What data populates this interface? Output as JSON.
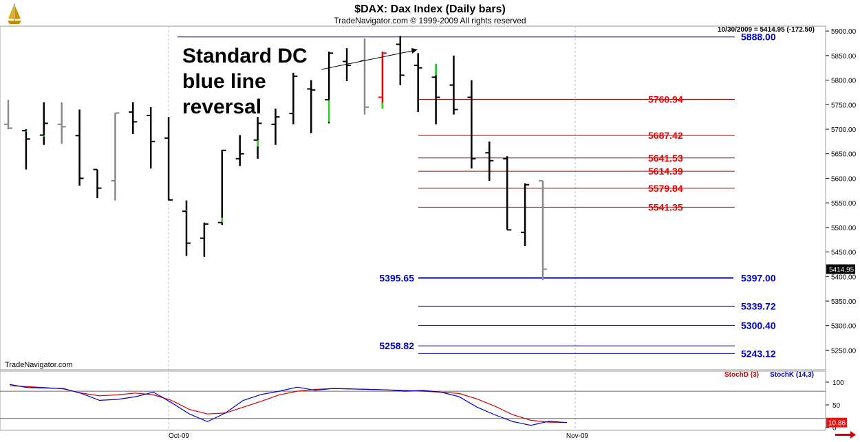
{
  "header": {
    "title": "$DAX:  Dax Index  (Daily bars)",
    "copyright": "TradeNavigator.com © 1999-2009 All rights reserved",
    "status_readout": "10/30/2009 = 5414.95 (-172.50)",
    "watermark": "TradeNavigator.com",
    "logo_icon": "sailing-ship-icon",
    "nav_icon": "right-arrow-icon"
  },
  "colors": {
    "up_bar": "#000000",
    "down_bar": "#000000",
    "gray_bar": "#888888",
    "green_bar": "#22dd22",
    "red_bar": "#ee0000",
    "blue_level": "#0000cc",
    "red_level": "#aa0000",
    "stoch_d": "#cc0000",
    "stoch_k": "#0000cc",
    "grid": "#bbbbbb",
    "price_box": "#000000",
    "stoch_box": "#ee1111",
    "arrow": "#cc0000"
  },
  "chart_data": [
    {
      "type": "ohlc",
      "title": "$DAX:  Dax Index  (Daily bars)",
      "ylim": [
        5210,
        5910
      ],
      "y_ticks": [
        5250,
        5300,
        5350,
        5400,
        5450,
        5500,
        5550,
        5600,
        5650,
        5700,
        5750,
        5800,
        5850,
        5900
      ],
      "y_tick_labels": [
        "5250.00",
        "5300.00",
        "5350.00",
        "5400.00",
        "5450.00",
        "5500.00",
        "5550.00",
        "5600.00",
        "5650.00",
        "5700.00",
        "5750.00",
        "5800.00",
        "5850.00",
        "5900.00"
      ],
      "x_labels": [
        "Oct-09",
        "Nov-09"
      ],
      "last_price_label": "5414.95",
      "annotation": [
        "Standard DC",
        "blue line",
        "reversal"
      ],
      "bars": [
        {
          "o": 5710,
          "h": 5760,
          "l": 5700,
          "c": 5702,
          "color": "gray"
        },
        {
          "o": 5697,
          "h": 5700,
          "l": 5618,
          "c": 5680,
          "color": "black",
          "green_to": 5695
        },
        {
          "o": 5688,
          "h": 5755,
          "l": 5668,
          "c": 5712,
          "color": "black",
          "green_to": 5685
        },
        {
          "o": 5710,
          "h": 5755,
          "l": 5670,
          "c": 5705,
          "color": "gray"
        },
        {
          "o": 5687,
          "h": 5740,
          "l": 5585,
          "c": 5600,
          "color": "black"
        },
        {
          "o": 5618,
          "h": 5618,
          "l": 5560,
          "c": 5580,
          "color": "black"
        },
        {
          "o": 5595,
          "h": 5733,
          "l": 5555,
          "c": 5733,
          "color": "gray"
        },
        {
          "o": 5735,
          "h": 5755,
          "l": 5690,
          "c": 5715,
          "color": "black"
        },
        {
          "o": 5728,
          "h": 5745,
          "l": 5620,
          "c": 5675,
          "color": "black"
        },
        {
          "o": 5682,
          "h": 5725,
          "l": 5555,
          "c": 5556,
          "color": "black"
        },
        {
          "o": 5533,
          "h": 5555,
          "l": 5442,
          "c": 5468,
          "color": "black",
          "green_to": 5535
        },
        {
          "o": 5478,
          "h": 5510,
          "l": 5440,
          "c": 5507,
          "color": "black"
        },
        {
          "o": 5510,
          "h": 5658,
          "l": 5505,
          "c": 5657,
          "color": "black",
          "green_to": 5520
        },
        {
          "o": 5640,
          "h": 5688,
          "l": 5625,
          "c": 5650,
          "color": "black"
        },
        {
          "o": 5678,
          "h": 5725,
          "l": 5640,
          "c": 5712,
          "color": "black",
          "green_to": 5665
        },
        {
          "o": 5710,
          "h": 5742,
          "l": 5668,
          "c": 5725,
          "color": "black"
        },
        {
          "o": 5732,
          "h": 5815,
          "l": 5710,
          "c": 5808,
          "color": "black",
          "green_to": 5733
        },
        {
          "o": 5782,
          "h": 5800,
          "l": 5692,
          "c": 5780,
          "color": "black"
        },
        {
          "o": 5760,
          "h": 5858,
          "l": 5712,
          "c": 5855,
          "color": "black",
          "green_to": 5715
        },
        {
          "o": 5838,
          "h": 5865,
          "l": 5798,
          "c": 5830,
          "color": "black"
        },
        {
          "o": 5840,
          "h": 5885,
          "l": 5730,
          "c": 5745,
          "color": "gray"
        },
        {
          "o": 5765,
          "h": 5858,
          "l": 5742,
          "c": 5855,
          "color": "red",
          "green_to": 5755
        },
        {
          "o": 5873,
          "h": 5890,
          "l": 5790,
          "c": 5810,
          "color": "black"
        },
        {
          "o": 5830,
          "h": 5855,
          "l": 5735,
          "c": 5825,
          "color": "black"
        },
        {
          "o": 5806,
          "h": 5833,
          "l": 5710,
          "c": 5765,
          "color": "black",
          "green_top": 5833,
          "green_to": 5810
        },
        {
          "o": 5790,
          "h": 5850,
          "l": 5730,
          "c": 5740,
          "color": "black"
        },
        {
          "o": 5765,
          "h": 5800,
          "l": 5620,
          "c": 5640,
          "color": "black"
        },
        {
          "o": 5652,
          "h": 5675,
          "l": 5595,
          "c": 5636,
          "color": "black"
        },
        {
          "o": 5640,
          "h": 5645,
          "l": 5495,
          "c": 5495,
          "color": "black"
        },
        {
          "o": 5490,
          "h": 5590,
          "l": 5462,
          "c": 5587,
          "color": "black"
        },
        {
          "o": 5595,
          "h": 5595,
          "l": 5393,
          "c": 5415,
          "color": "gray"
        }
      ],
      "levels": [
        {
          "value": 5888.0,
          "label": "5888.00",
          "color": "blue",
          "side": "right"
        },
        {
          "value": 5760.94,
          "label": "5760.94",
          "color": "red",
          "side": "right"
        },
        {
          "value": 5687.42,
          "label": "5687.42",
          "color": "red",
          "side": "right"
        },
        {
          "value": 5641.53,
          "label": "5641.53",
          "color": "red",
          "side": "right"
        },
        {
          "value": 5614.39,
          "label": "5614.39",
          "color": "red",
          "side": "right"
        },
        {
          "value": 5579.84,
          "label": "5579.84",
          "color": "red",
          "side": "right"
        },
        {
          "value": 5541.35,
          "label": "5541.35",
          "color": "red",
          "side": "right"
        },
        {
          "value": 5397.0,
          "label": "5397.00",
          "color": "blue",
          "side": "right",
          "left_label": "5395.65",
          "bold": true
        },
        {
          "value": 5339.72,
          "label": "5339.72",
          "color": "blue",
          "side": "right"
        },
        {
          "value": 5300.4,
          "label": "5300.40",
          "color": "blue",
          "side": "right"
        },
        {
          "value": 5258.82,
          "label": "",
          "color": "blue",
          "side": "right",
          "left_label": "5258.82"
        },
        {
          "value": 5243.12,
          "label": "5243.12",
          "color": "blue",
          "side": "right"
        }
      ]
    },
    {
      "type": "line",
      "title": "",
      "ylim": [
        0,
        112
      ],
      "y_ticks": [
        100,
        50,
        0
      ],
      "y_tick_labels": [
        "100",
        "50",
        "0"
      ],
      "guide_lines": [
        80,
        20
      ],
      "last_value_label": "10.86",
      "series": [
        {
          "name": "StochD (3)",
          "color": "red",
          "values": [
            92,
            90,
            88,
            85,
            76,
            70,
            72,
            76,
            72,
            60,
            40,
            30,
            32,
            45,
            58,
            72,
            80,
            84,
            86,
            85,
            84,
            83,
            82,
            80,
            78,
            75,
            63,
            47,
            28,
            16,
            12,
            11
          ]
        },
        {
          "name": "StochK (14,3)",
          "color": "blue",
          "values": [
            95,
            88,
            87,
            86,
            75,
            60,
            62,
            68,
            78,
            55,
            30,
            13,
            32,
            60,
            73,
            80,
            89,
            82,
            86,
            85,
            84,
            83,
            80,
            82,
            78,
            68,
            45,
            28,
            13,
            5,
            14,
            11
          ]
        }
      ]
    }
  ]
}
